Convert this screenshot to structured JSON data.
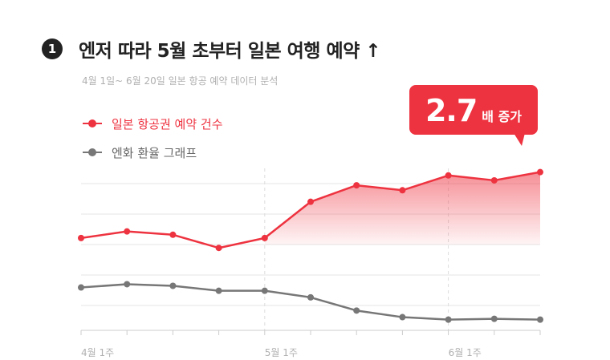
{
  "header": {
    "badge": "1",
    "title": "엔저 따라 5월 초부터 일본 여행 예약 ↑",
    "subtitle": "4월 1일~ 6월 20일 일본 항공 예약 데이터 분석"
  },
  "callout": {
    "value": "2.7",
    "suffix": "배 증가"
  },
  "colors": {
    "red": "#ee3340",
    "gray": "#777777",
    "grid": "#e6e6e6",
    "axis": "#cccccc"
  },
  "chart_data": {
    "type": "line",
    "x_tick_labels": [
      "4월 1주",
      "5월 1주",
      "6월 1주"
    ],
    "points_per_series": 11,
    "series": [
      {
        "name": "일본 항공권 예약 건수",
        "color": "#ee3340",
        "area": true,
        "values": [
          28,
          32,
          30,
          22,
          28,
          50,
          60,
          57,
          66,
          63,
          68
        ]
      },
      {
        "name": "엔화 환율 그래프",
        "color": "#777777",
        "values": [
          -2,
          0,
          -1,
          -4,
          -4,
          -8,
          -16,
          -20,
          -21.5,
          -21,
          -21.5
        ]
      }
    ],
    "ylim": [
      -28,
      80
    ],
    "grid": true,
    "legend_position": "top-left"
  }
}
